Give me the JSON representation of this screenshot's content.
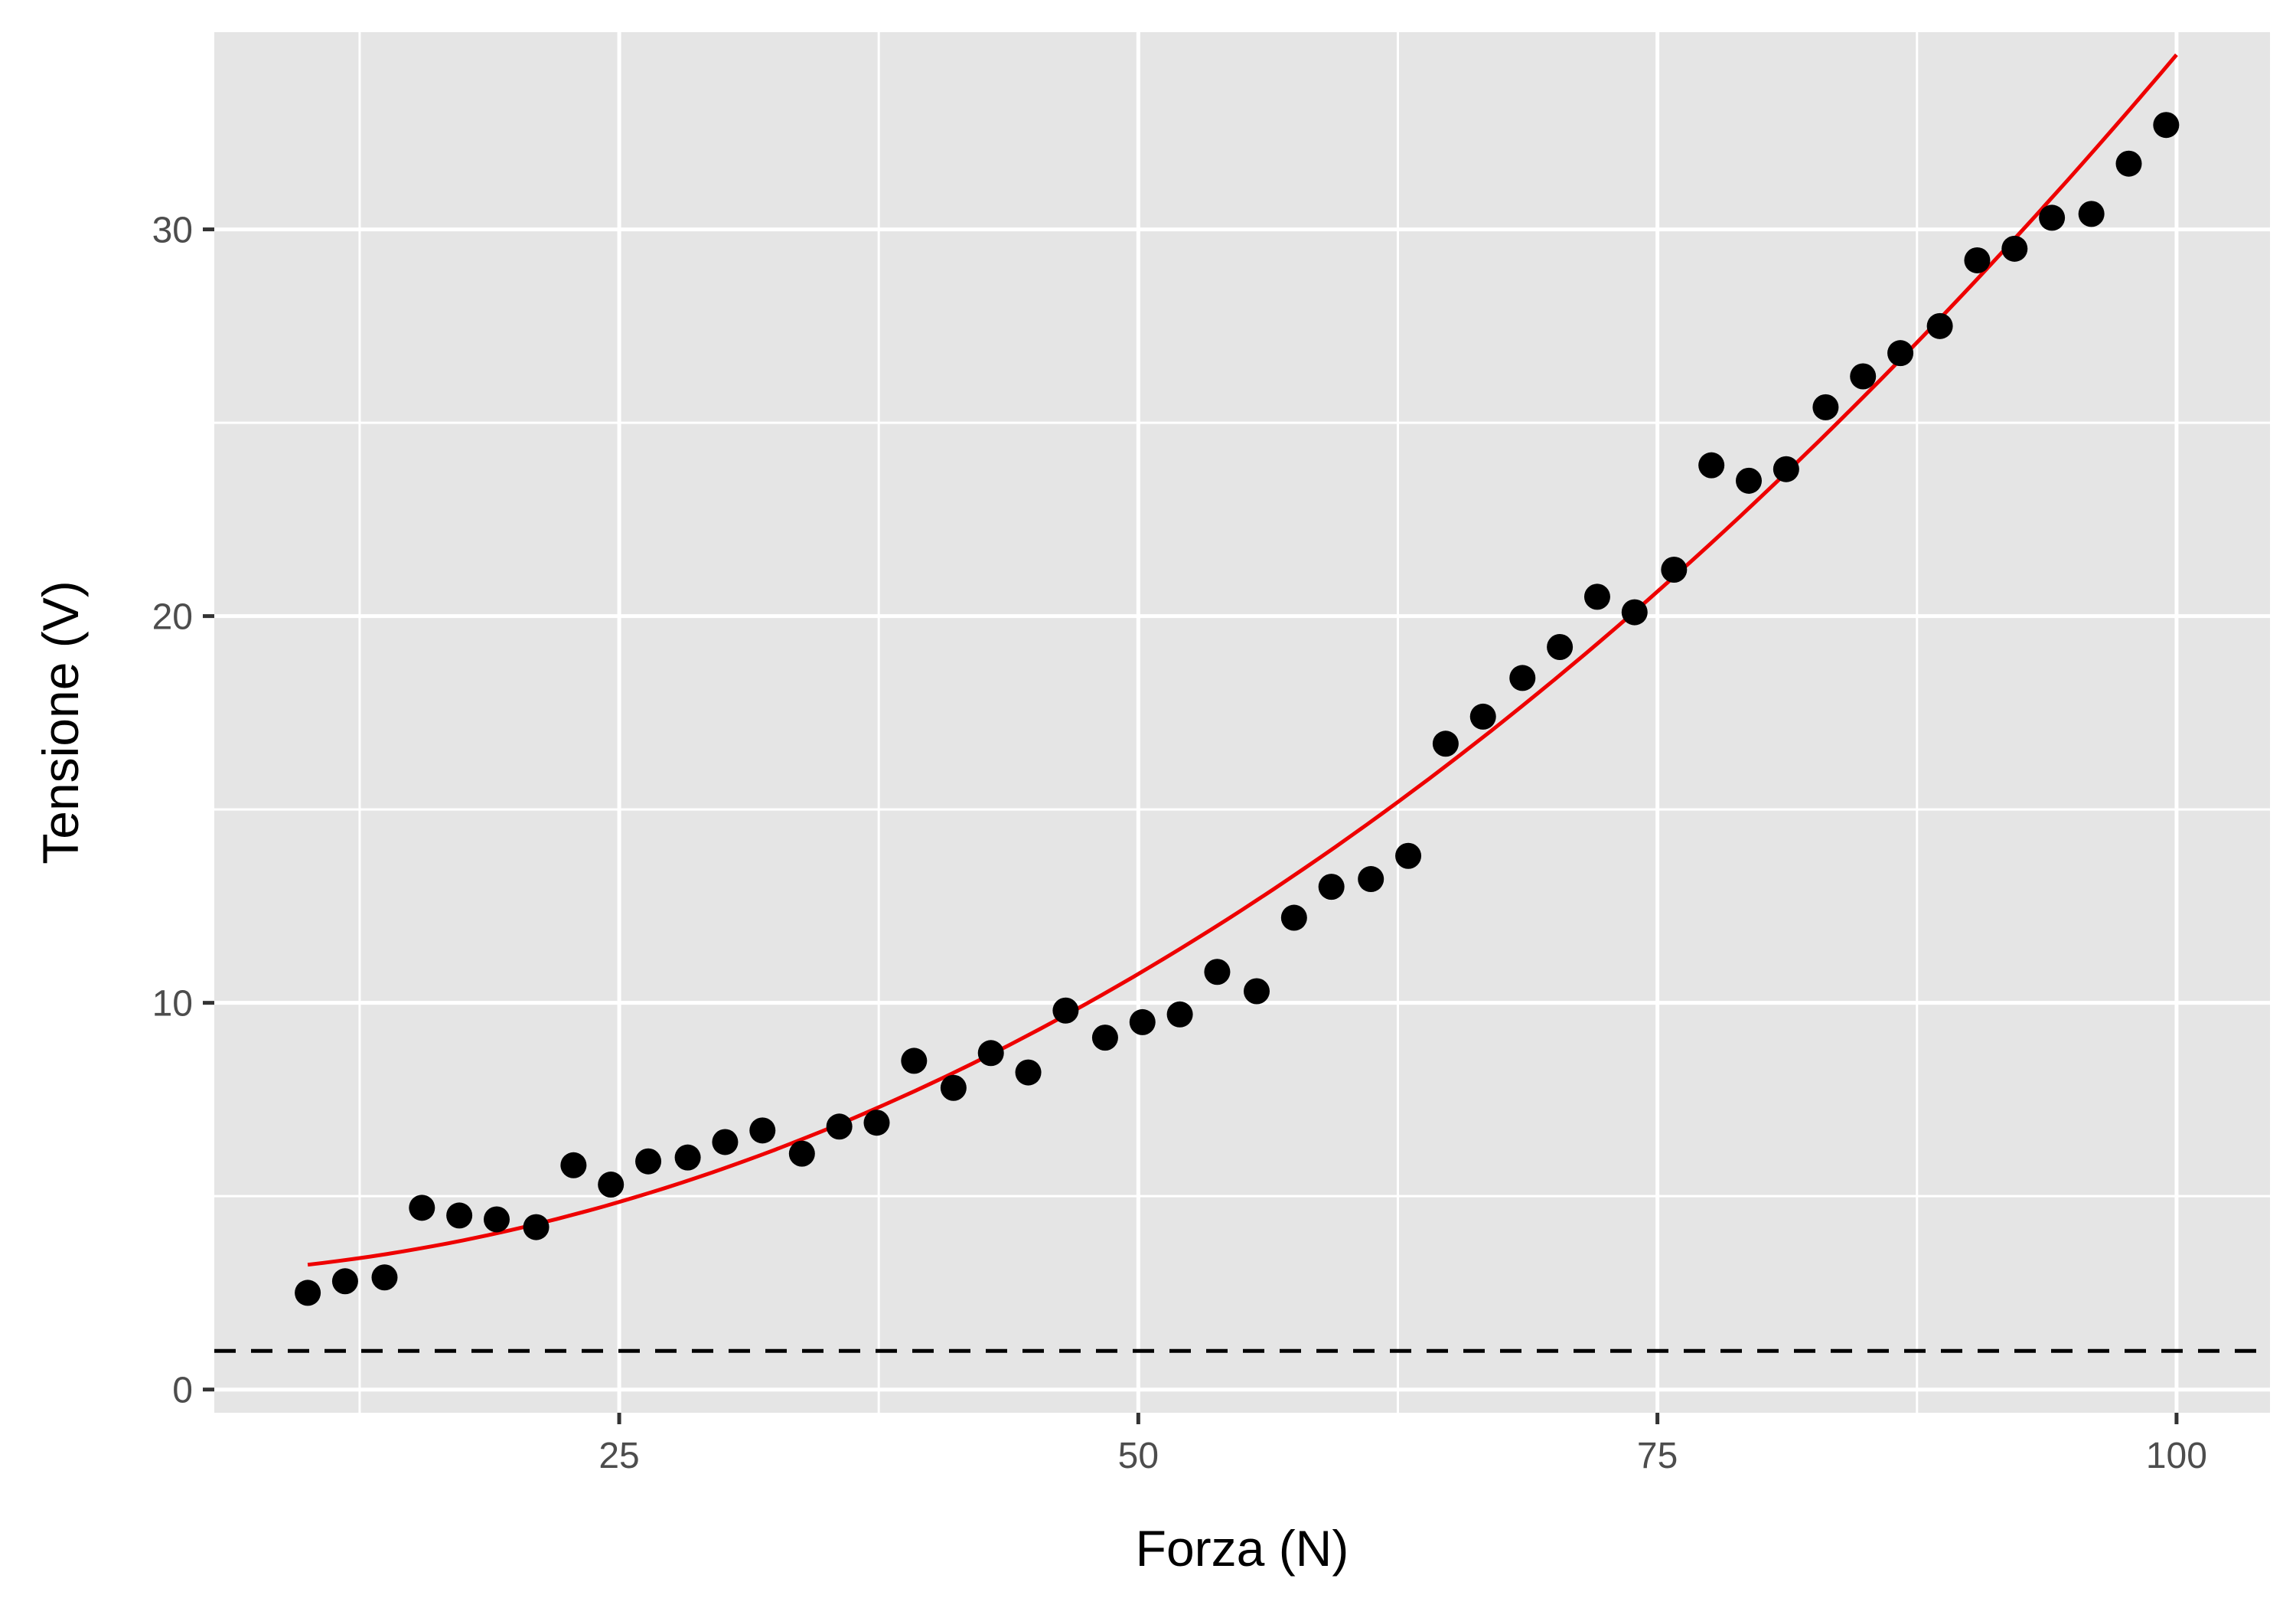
{
  "chart_data": {
    "type": "scatter",
    "title": "",
    "xlabel": "Forza (N)",
    "ylabel": "Tensione (V)",
    "xlim": [
      5.5,
      104.5
    ],
    "ylim": [
      -0.6,
      35.1
    ],
    "x_ticks": [
      25,
      50,
      75,
      100
    ],
    "x_tick_labels": [
      "25",
      "50",
      "75",
      "100"
    ],
    "x_minor_ticks": [
      12.5,
      37.5,
      62.5,
      87.5
    ],
    "y_ticks": [
      0,
      10,
      20,
      30
    ],
    "y_tick_labels": [
      "0",
      "10",
      "20",
      "30"
    ],
    "y_minor_ticks": [
      5,
      15,
      25
    ],
    "grid": true,
    "colors": {
      "panel": "#e5e5e5",
      "grid": "#ffffff",
      "points": "#000000",
      "fit_line": "#ee0000",
      "reference_line": "#000000"
    },
    "series": [
      {
        "type": "scatter",
        "x": [
          10,
          11.8,
          13.7,
          15.5,
          17.3,
          19.1,
          21,
          22.8,
          24.6,
          26.4,
          28.3,
          30.1,
          31.9,
          33.8,
          35.6,
          37.4,
          39.2,
          41.1,
          42.9,
          44.7,
          46.5,
          48.4,
          50.2,
          52,
          53.8,
          55.7,
          57.5,
          59.3,
          61.2,
          63,
          64.8,
          66.6,
          68.5,
          70.3,
          72.1,
          73.9,
          75.8,
          77.6,
          79.4,
          81.2,
          83.1,
          84.9,
          86.7,
          88.6,
          90.4,
          92.2,
          94,
          95.9,
          97.7,
          99.5
        ],
        "y": [
          2.5,
          2.8,
          2.9,
          4.7,
          4.5,
          4.4,
          4.2,
          5.8,
          5.3,
          5.9,
          6.0,
          6.4,
          6.7,
          6.1,
          6.8,
          6.9,
          8.5,
          7.8,
          8.7,
          8.2,
          9.8,
          9.1,
          9.5,
          9.7,
          10.8,
          10.3,
          12.2,
          13.0,
          13.2,
          13.8,
          16.7,
          17.4,
          18.4,
          19.2,
          20.5,
          20.1,
          21.2,
          23.9,
          23.5,
          23.8,
          25.4,
          26.2,
          26.8,
          27.5,
          29.2,
          29.5,
          30.3,
          30.4,
          31.7,
          32.7
        ]
      },
      {
        "type": "line",
        "x": [
          10,
          20,
          30,
          40,
          50,
          60,
          70,
          80,
          90,
          100
        ],
        "y": [
          3.4,
          4.15,
          5.6,
          7.75,
          10.6,
          14.15,
          18.4,
          23.35,
          29.0,
          34.0
        ]
      }
    ],
    "hline": {
      "y": 1.0,
      "style": "dashed"
    }
  }
}
